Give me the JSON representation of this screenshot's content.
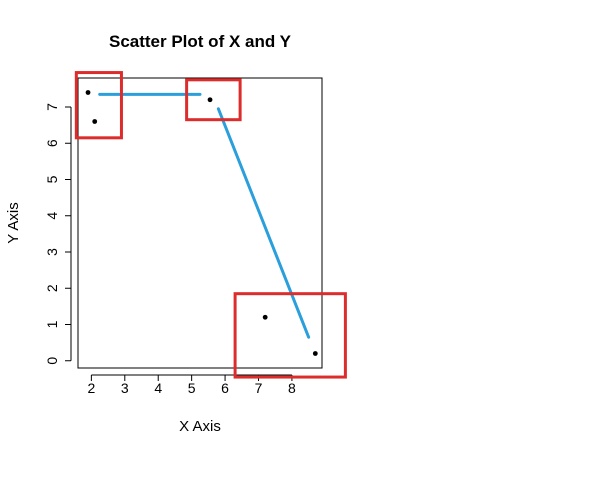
{
  "chart_data": {
    "type": "scatter",
    "title": "Scatter Plot of X and Y",
    "xlabel": "X Axis",
    "ylabel": "Y Axis",
    "xlim": [
      1.6,
      8.9
    ],
    "ylim": [
      -0.2,
      7.8
    ],
    "xticks": [
      2,
      3,
      4,
      5,
      6,
      7,
      8
    ],
    "yticks": [
      0,
      1,
      2,
      3,
      4,
      5,
      6,
      7
    ],
    "grid": false,
    "points": [
      {
        "x": 1.9,
        "y": 7.4
      },
      {
        "x": 2.1,
        "y": 6.6
      },
      {
        "x": 5.55,
        "y": 7.2
      },
      {
        "x": 7.2,
        "y": 1.2
      },
      {
        "x": 8.7,
        "y": 0.2
      }
    ],
    "annotations": {
      "boxes": [
        {
          "x0": 1.55,
          "x1": 2.9,
          "y0": 6.15,
          "y1": 7.95
        },
        {
          "x0": 4.85,
          "x1": 6.45,
          "y0": 6.65,
          "y1": 7.75
        },
        {
          "x0": 6.3,
          "x1": 9.6,
          "y0": -0.45,
          "y1": 1.85
        }
      ],
      "box_color": "#dd2c2c",
      "line_segments": [
        [
          {
            "x": 2.25,
            "y": 7.35
          },
          {
            "x": 3.75,
            "y": 7.35
          },
          {
            "x": 5.25,
            "y": 7.35
          }
        ],
        [
          {
            "x": 5.8,
            "y": 6.95
          },
          {
            "x": 8.5,
            "y": 0.65
          }
        ]
      ],
      "line_color": "#2a9fdc"
    }
  }
}
